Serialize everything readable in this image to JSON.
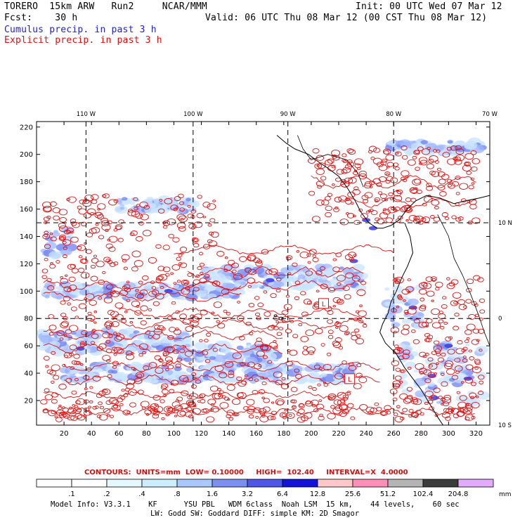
{
  "header": {
    "line1_left": "TORERO  15km ARW   Run2     NCAR/MMM",
    "line1_right": "Init: 00 UTC Wed 07 Mar 12",
    "line2_left": "Fcst:    30 h",
    "line2_right": "Valid: 06 UTC Thu 08 Mar 12 (00 CST Thu 08 Mar 12)",
    "cumulus_label": "Cumulus precip. in past 3 h",
    "explicit_label": "Explicit precip. in past 3 h"
  },
  "map": {
    "lon_labels": [
      "110 W",
      "100 W",
      "90 W",
      "80 W",
      "70 W"
    ],
    "lat_labels": [
      "10 N",
      "0",
      "10 S"
    ],
    "x_ticks": [
      "20",
      "40",
      "60",
      "80",
      "100",
      "120",
      "140",
      "160",
      "180",
      "200",
      "220",
      "240",
      "260",
      "280",
      "300",
      "320"
    ],
    "y_ticks": [
      "20",
      "40",
      "60",
      "80",
      "100",
      "120",
      "140",
      "160",
      "180",
      "200",
      "220"
    ],
    "box_labels": [
      "L",
      "L"
    ]
  },
  "contour_info": {
    "text": "CONTOURS:  UNITS=mm  LOW= 0.10000     HIGH=  102.40     INTERVAL=X  4.0000"
  },
  "colorbar": {
    "labels": [
      ".1",
      ".2",
      ".4",
      ".8",
      "1.6",
      "3.2",
      "6.4",
      "12.8",
      "25.6",
      "51.2",
      "102.4",
      "204.8"
    ],
    "unit": "mm",
    "colors": [
      "#ffffff",
      "#ffffff",
      "#e6f8ff",
      "#cdeeff",
      "#a9c8ff",
      "#7b8ff2",
      "#4e56ea",
      "#1212d8",
      "#ffc7c7",
      "#ff8fb8",
      "#b4b4b4",
      "#3c3c3c",
      "#e3aaff"
    ]
  },
  "model_info": {
    "line1": "Model Info: V3.3.1    KF      YSU PBL   WDM 6class  Noah LSM  15 km,    44 levels,    60 sec",
    "line2": "LW: Godd SW: Goddard DIFF: simple KM: 2D Smagor"
  }
}
